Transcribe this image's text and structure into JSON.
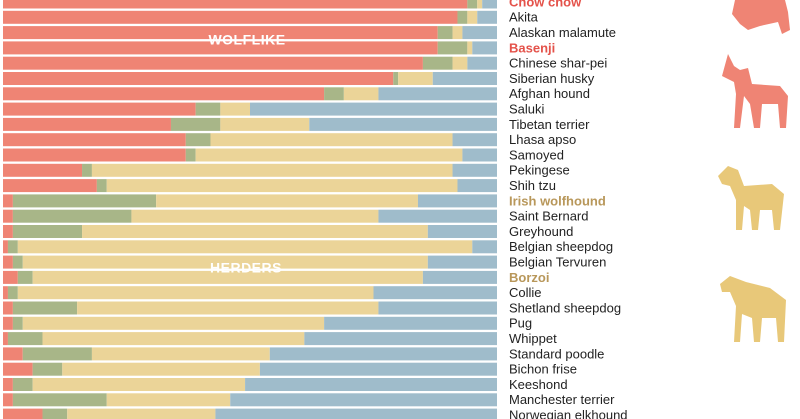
{
  "chart_data": {
    "type": "stacked-barh",
    "categories": [
      "Chow chow",
      "Akita",
      "Alaskan malamute",
      "Basenji",
      "Chinese shar-pei",
      "Siberian husky",
      "Afghan hound",
      "Saluki",
      "Tibetan terrier",
      "Lhasa apso",
      "Samoyed",
      "Pekingese",
      "Shih tzu",
      "Irish wolfhound",
      "Saint Bernard",
      "Greyhound",
      "Belgian sheepdog",
      "Belgian Tervuren",
      "Borzoi",
      "Collie",
      "Shetland sheepdog",
      "Pug",
      "Whippet",
      "Standard poodle",
      "Bichon frise",
      "Keeshond",
      "Manchester terrier",
      "Norwegian elkhound"
    ],
    "category_colors": [
      "#e4524a",
      null,
      null,
      "#e4524a",
      null,
      null,
      null,
      null,
      null,
      null,
      null,
      null,
      null,
      "#b8975a",
      null,
      null,
      null,
      null,
      "#b8975a",
      null,
      null,
      null,
      null,
      null,
      null,
      null,
      null,
      null
    ],
    "series": [
      {
        "color": "#ef8474",
        "values": [
          94,
          92,
          88,
          88,
          85,
          79,
          65,
          39,
          34,
          37,
          37,
          16,
          19,
          2,
          2,
          2,
          1,
          2,
          3,
          1,
          2,
          2,
          1,
          4,
          6,
          2,
          2,
          8
        ]
      },
      {
        "color": "#a8b688",
        "values": [
          2,
          2,
          3,
          6,
          6,
          1,
          4,
          5,
          10,
          5,
          2,
          2,
          2,
          29,
          24,
          14,
          2,
          2,
          3,
          2,
          13,
          2,
          7,
          14,
          6,
          4,
          19,
          5
        ]
      },
      {
        "color": "#ebd498",
        "values": [
          1,
          2,
          2,
          1,
          3,
          7,
          7,
          6,
          18,
          49,
          54,
          73,
          71,
          53,
          50,
          70,
          92,
          82,
          79,
          72,
          61,
          61,
          53,
          36,
          40,
          43,
          25,
          30
        ]
      },
      {
        "color": "#9fbccb",
        "values": [
          3,
          4,
          7,
          5,
          6,
          13,
          24,
          50,
          38,
          9,
          7,
          9,
          8,
          16,
          24,
          14,
          5,
          14,
          15,
          25,
          24,
          35,
          39,
          46,
          48,
          51,
          54,
          57
        ]
      }
    ],
    "annotations": [
      "WOLFLIKE",
      "HERDERS"
    ],
    "xlim": [
      0,
      100
    ]
  }
}
